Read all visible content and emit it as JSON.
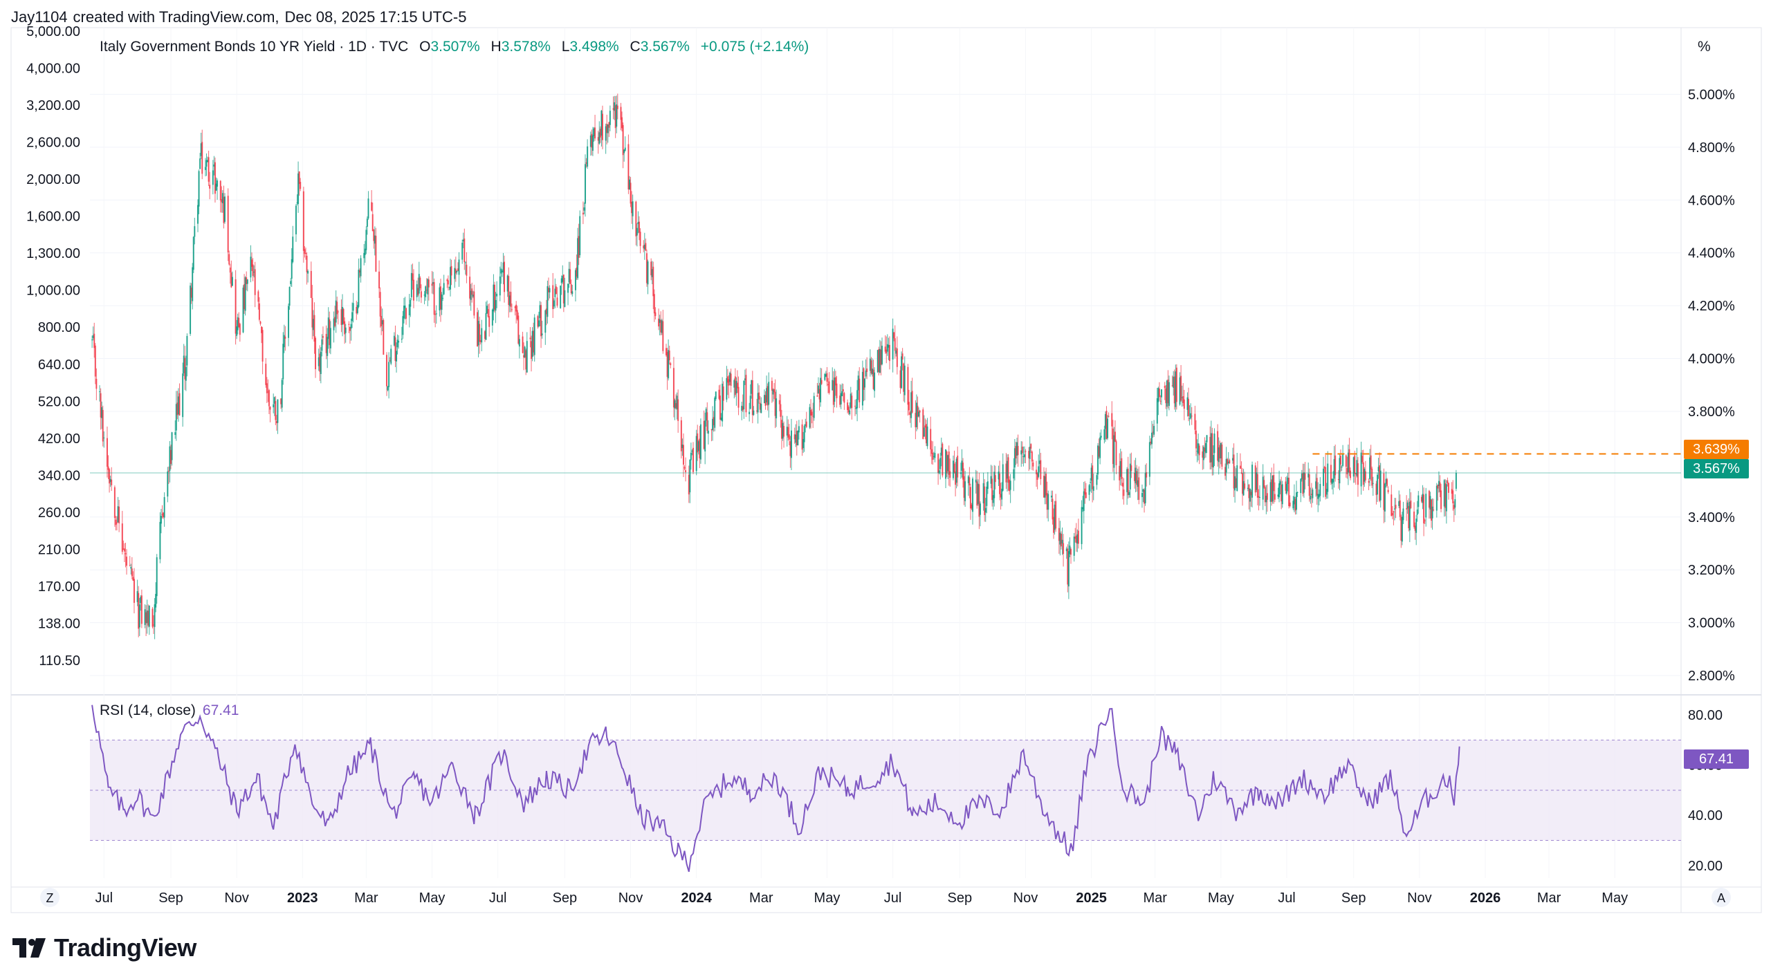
{
  "header": {
    "user_name": "Jay1104",
    "created_with": "created with TradingView.com,",
    "timestamp": "Dec 08, 2025 17:15 UTC-5"
  },
  "legend": {
    "title": "Italy Government Bonds 10 YR Yield · 1D · TVC",
    "o_label": "O",
    "o_value": "3.507%",
    "h_label": "H",
    "h_value": "3.578%",
    "l_label": "L",
    "l_value": "3.498%",
    "c_label": "C",
    "c_value": "3.567%",
    "change": "+0.075 (+2.14%)"
  },
  "unit_label": "%",
  "rsi_legend": {
    "label": "RSI (14, close)",
    "value": "67.41"
  },
  "price_tags": {
    "last": "3.567%",
    "dashed_level": "3.639%",
    "rsi_last": "67.41"
  },
  "colors": {
    "up": "#089981",
    "down": "#f23645",
    "accent_orange": "#f57c00",
    "rsi_line": "#7e57c2",
    "rsi_band": "#ede7f6"
  },
  "brand": {
    "logo_text": "TradingView"
  },
  "time_axis_buttons": {
    "left": "Z",
    "right": "A"
  },
  "chart_data": [
    {
      "type": "candlestick",
      "x_axis_labels": [
        "Jul",
        "Sep",
        "Nov",
        "2023",
        "Mar",
        "May",
        "Jul",
        "Sep",
        "Nov",
        "2024",
        "Mar",
        "May",
        "Jul",
        "Sep",
        "Nov",
        "2025",
        "Mar",
        "May",
        "Jul",
        "Sep",
        "Nov",
        "2026",
        "Mar",
        "May"
      ],
      "y_axis_right": {
        "unit": "%",
        "ticks": [
          "5.000%",
          "4.800%",
          "4.600%",
          "4.400%",
          "4.200%",
          "4.000%",
          "3.800%",
          "3.400%",
          "3.200%",
          "3.000%",
          "2.800%"
        ],
        "range": [
          2.74,
          5.2
        ]
      },
      "y_axis_left_ticks": [
        "5,000.00",
        "4,000.00",
        "3,200.00",
        "2,600.00",
        "2,000.00",
        "1,600.00",
        "1,300.00",
        "1,000.00",
        "800.00",
        "640.00",
        "520.00",
        "420.00",
        "340.00",
        "260.00",
        "210.00",
        "170.00",
        "138.00",
        "110.50"
      ],
      "last_price": 3.567,
      "dashed_level": 3.639,
      "ohlc_last": {
        "open": 3.507,
        "high": 3.578,
        "low": 3.498,
        "close": 3.567
      },
      "approx_close_path": [
        [
          "2022-06-20",
          4.05
        ],
        [
          "2022-07-01",
          3.7
        ],
        [
          "2022-07-20",
          3.25
        ],
        [
          "2022-08-01",
          3.05
        ],
        [
          "2022-08-15",
          3.0
        ],
        [
          "2022-08-25",
          3.45
        ],
        [
          "2022-09-15",
          4.0
        ],
        [
          "2022-09-28",
          4.75
        ],
        [
          "2022-10-10",
          4.7
        ],
        [
          "2022-10-22",
          4.55
        ],
        [
          "2022-11-01",
          4.1
        ],
        [
          "2022-11-15",
          4.35
        ],
        [
          "2022-11-30",
          3.85
        ],
        [
          "2022-12-10",
          3.8
        ],
        [
          "2022-12-28",
          4.65
        ],
        [
          "2023-01-15",
          3.95
        ],
        [
          "2023-02-01",
          4.2
        ],
        [
          "2023-02-15",
          4.1
        ],
        [
          "2023-03-05",
          4.6
        ],
        [
          "2023-03-20",
          3.95
        ],
        [
          "2023-04-15",
          4.3
        ],
        [
          "2023-05-10",
          4.2
        ],
        [
          "2023-05-30",
          4.4
        ],
        [
          "2023-06-15",
          4.05
        ],
        [
          "2023-07-05",
          4.35
        ],
        [
          "2023-07-25",
          4.0
        ],
        [
          "2023-08-20",
          4.25
        ],
        [
          "2023-09-10",
          4.3
        ],
        [
          "2023-09-25",
          4.85
        ],
        [
          "2023-10-10",
          4.9
        ],
        [
          "2023-10-20",
          4.95
        ],
        [
          "2023-11-05",
          4.5
        ],
        [
          "2023-11-20",
          4.3
        ],
        [
          "2023-12-10",
          3.9
        ],
        [
          "2023-12-25",
          3.55
        ],
        [
          "2024-01-10",
          3.75
        ],
        [
          "2024-02-01",
          3.9
        ],
        [
          "2024-02-20",
          3.85
        ],
        [
          "2024-03-10",
          3.85
        ],
        [
          "2024-04-01",
          3.65
        ],
        [
          "2024-04-25",
          3.9
        ],
        [
          "2024-05-20",
          3.85
        ],
        [
          "2024-06-15",
          3.95
        ],
        [
          "2024-07-01",
          4.05
        ],
        [
          "2024-07-20",
          3.8
        ],
        [
          "2024-08-05",
          3.65
        ],
        [
          "2024-08-25",
          3.6
        ],
        [
          "2024-09-20",
          3.45
        ],
        [
          "2024-10-15",
          3.55
        ],
        [
          "2024-11-01",
          3.7
        ],
        [
          "2024-11-20",
          3.5
        ],
        [
          "2024-12-10",
          3.2
        ],
        [
          "2024-12-25",
          3.45
        ],
        [
          "2025-01-15",
          3.75
        ],
        [
          "2025-01-30",
          3.55
        ],
        [
          "2025-02-20",
          3.5
        ],
        [
          "2025-03-05",
          3.9
        ],
        [
          "2025-03-20",
          3.9
        ],
        [
          "2025-04-10",
          3.7
        ],
        [
          "2025-04-25",
          3.65
        ],
        [
          "2025-05-15",
          3.55
        ],
        [
          "2025-06-05",
          3.52
        ],
        [
          "2025-06-25",
          3.48
        ],
        [
          "2025-07-15",
          3.5
        ],
        [
          "2025-08-10",
          3.55
        ],
        [
          "2025-08-30",
          3.6
        ],
        [
          "2025-09-20",
          3.55
        ],
        [
          "2025-10-15",
          3.38
        ],
        [
          "2025-11-01",
          3.42
        ],
        [
          "2025-11-20",
          3.47
        ],
        [
          "2025-12-05",
          3.5
        ],
        [
          "2025-12-08",
          3.567
        ]
      ]
    },
    {
      "type": "line",
      "y_axis_right_ticks": [
        "80.00",
        "60.00",
        "40.00",
        "20.00"
      ],
      "ylim": [
        15,
        88
      ],
      "band": [
        30,
        70
      ],
      "midline": 50,
      "last_value": 67.41,
      "approx_path": [
        [
          "2022-06-20",
          86
        ],
        [
          "2022-07-05",
          50
        ],
        [
          "2022-07-20",
          42
        ],
        [
          "2022-08-01",
          48
        ],
        [
          "2022-08-15",
          38
        ],
        [
          "2022-08-25",
          50
        ],
        [
          "2022-09-10",
          72
        ],
        [
          "2022-09-28",
          80
        ],
        [
          "2022-10-15",
          63
        ],
        [
          "2022-11-01",
          42
        ],
        [
          "2022-11-20",
          55
        ],
        [
          "2022-12-05",
          35
        ],
        [
          "2022-12-25",
          70
        ],
        [
          "2023-01-10",
          45
        ],
        [
          "2023-01-25",
          35
        ],
        [
          "2023-02-10",
          55
        ],
        [
          "2023-03-05",
          68
        ],
        [
          "2023-03-25",
          40
        ],
        [
          "2023-04-15",
          55
        ],
        [
          "2023-05-01",
          45
        ],
        [
          "2023-05-20",
          60
        ],
        [
          "2023-06-10",
          40
        ],
        [
          "2023-07-05",
          65
        ],
        [
          "2023-07-25",
          45
        ],
        [
          "2023-08-15",
          55
        ],
        [
          "2023-09-05",
          50
        ],
        [
          "2023-09-25",
          68
        ],
        [
          "2023-10-10",
          72
        ],
        [
          "2023-10-25",
          60
        ],
        [
          "2023-11-10",
          40
        ],
        [
          "2023-11-30",
          35
        ],
        [
          "2023-12-15",
          25
        ],
        [
          "2023-12-25",
          22
        ],
        [
          "2024-01-10",
          45
        ],
        [
          "2024-02-01",
          55
        ],
        [
          "2024-02-20",
          50
        ],
        [
          "2024-03-15",
          55
        ],
        [
          "2024-04-05",
          35
        ],
        [
          "2024-04-25",
          58
        ],
        [
          "2024-05-20",
          50
        ],
        [
          "2024-06-15",
          55
        ],
        [
          "2024-07-01",
          62
        ],
        [
          "2024-07-20",
          40
        ],
        [
          "2024-08-10",
          45
        ],
        [
          "2024-09-01",
          38
        ],
        [
          "2024-09-20",
          45
        ],
        [
          "2024-10-10",
          42
        ],
        [
          "2024-10-30",
          65
        ],
        [
          "2024-11-15",
          45
        ],
        [
          "2024-12-05",
          30
        ],
        [
          "2024-12-15",
          26
        ],
        [
          "2024-12-25",
          55
        ],
        [
          "2025-01-10",
          75
        ],
        [
          "2025-01-18",
          83
        ],
        [
          "2025-02-01",
          50
        ],
        [
          "2025-02-20",
          45
        ],
        [
          "2025-03-05",
          72
        ],
        [
          "2025-03-20",
          65
        ],
        [
          "2025-04-10",
          40
        ],
        [
          "2025-04-25",
          55
        ],
        [
          "2025-05-15",
          42
        ],
        [
          "2025-06-05",
          50
        ],
        [
          "2025-06-25",
          45
        ],
        [
          "2025-07-15",
          55
        ],
        [
          "2025-08-05",
          48
        ],
        [
          "2025-08-25",
          60
        ],
        [
          "2025-09-15",
          45
        ],
        [
          "2025-10-05",
          55
        ],
        [
          "2025-10-20",
          32
        ],
        [
          "2025-11-05",
          45
        ],
        [
          "2025-11-25",
          55
        ],
        [
          "2025-12-03",
          48
        ],
        [
          "2025-12-08",
          67.41
        ]
      ]
    }
  ]
}
